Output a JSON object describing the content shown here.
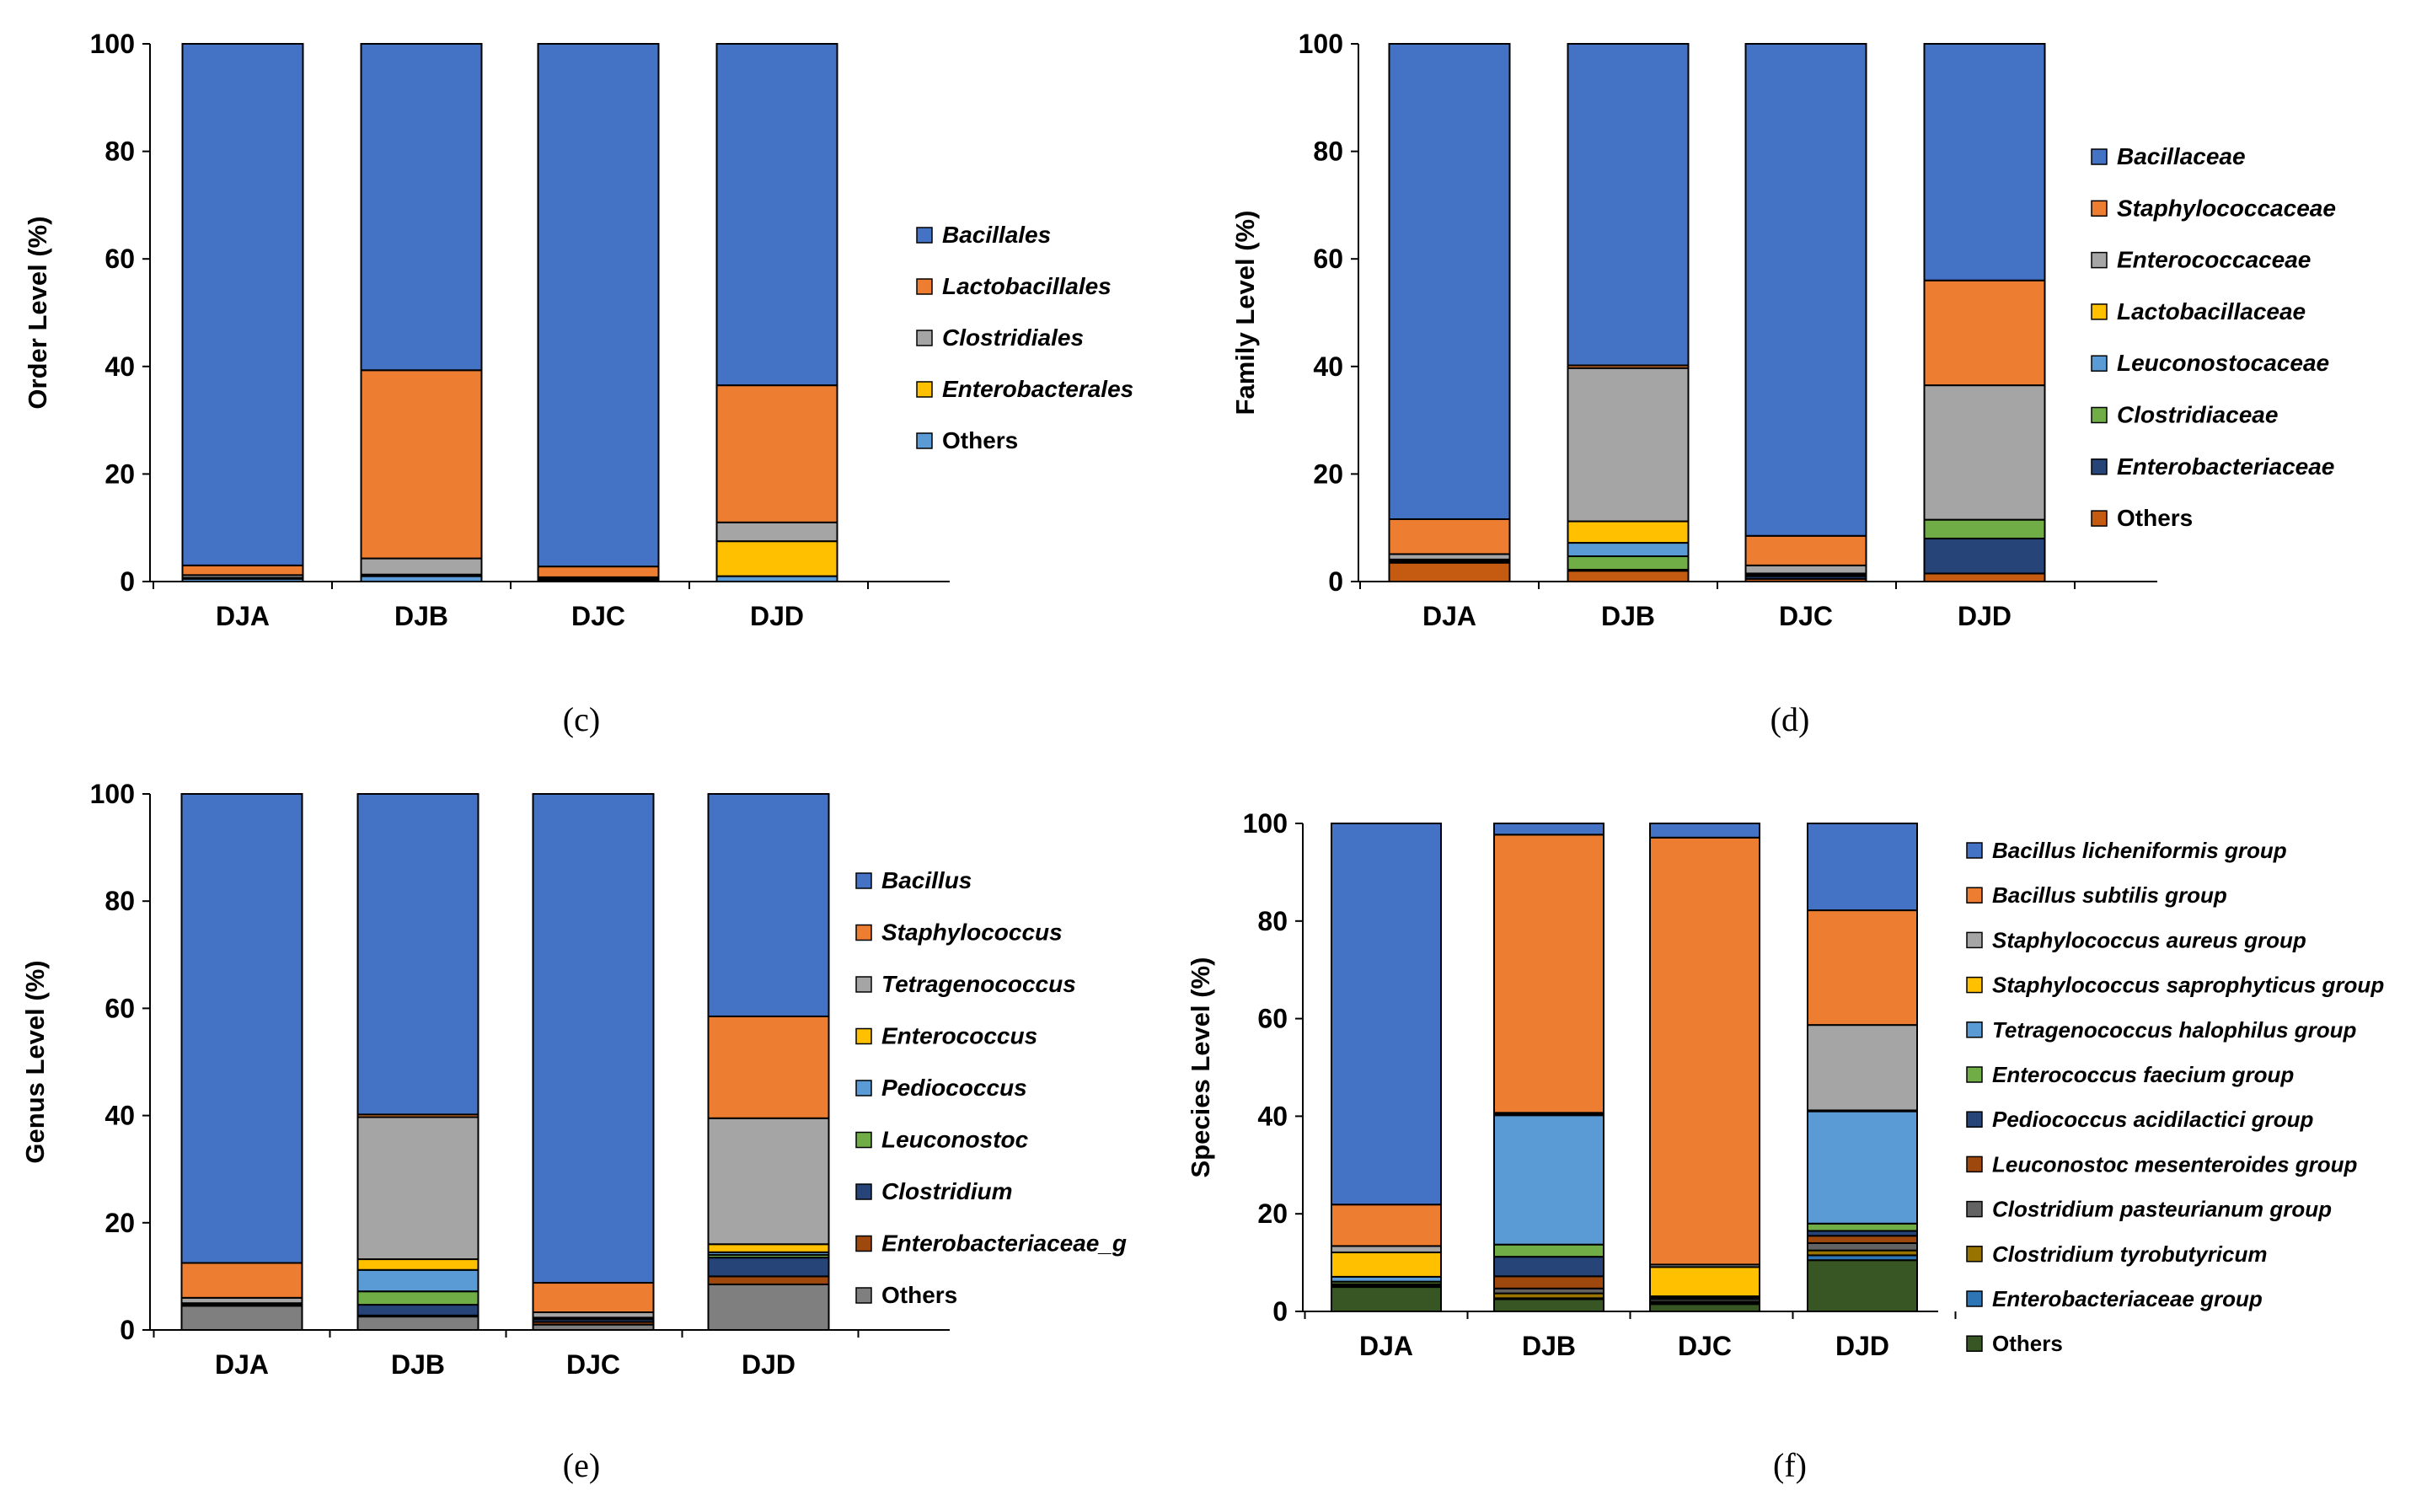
{
  "chart_data": [
    {
      "panel_label": "(c)",
      "type": "bar",
      "stacked": true,
      "title": "",
      "xlabel": "",
      "ylabel": "Order Level (%)",
      "ylim": [
        0,
        100
      ],
      "yticks": [
        "0",
        "20",
        "40",
        "60",
        "80",
        "100"
      ],
      "categories": [
        "DJA",
        "DJB",
        "DJC",
        "DJD"
      ],
      "series": [
        {
          "name": "Others",
          "italic": false,
          "color": "#5B9BD5",
          "values": [
            0.5,
            1.0,
            0.3,
            1.0
          ]
        },
        {
          "name": "Enterobacterales",
          "italic": true,
          "color": "#FFC000",
          "values": [
            0.2,
            0.3,
            0.2,
            6.5
          ]
        },
        {
          "name": "Clostridiales",
          "italic": true,
          "color": "#A5A5A5",
          "values": [
            0.5,
            3.0,
            0.3,
            3.5
          ]
        },
        {
          "name": "Lactobacillales",
          "italic": true,
          "color": "#ED7D31",
          "values": [
            1.8,
            35.0,
            2.0,
            25.5
          ]
        },
        {
          "name": "Bacillales",
          "italic": true,
          "color": "#4472C4",
          "values": [
            97.0,
            60.7,
            97.2,
            63.5
          ]
        }
      ],
      "legend_order": [
        "Bacillales",
        "Lactobacillales",
        "Clostridiales",
        "Enterobacterales",
        "Others"
      ],
      "legend_position": "right"
    },
    {
      "panel_label": "(d)",
      "type": "bar",
      "stacked": true,
      "title": "",
      "xlabel": "",
      "ylabel": "Family Level (%)",
      "ylim": [
        0,
        100
      ],
      "yticks": [
        "0",
        "20",
        "40",
        "60",
        "80",
        "100"
      ],
      "categories": [
        "DJA",
        "DJB",
        "DJC",
        "DJD"
      ],
      "series": [
        {
          "name": "Others",
          "italic": false,
          "color": "#C55A11",
          "values": [
            3.5,
            2.0,
            0.5,
            1.5
          ]
        },
        {
          "name": "Enterobacteriaceae",
          "italic": true,
          "color": "#264478",
          "values": [
            0.2,
            0.2,
            0.5,
            6.5
          ]
        },
        {
          "name": "Clostridiaceae",
          "italic": true,
          "color": "#70AD47",
          "values": [
            0.2,
            2.5,
            0.3,
            3.5
          ]
        },
        {
          "name": "Leuconostocaceae",
          "italic": true,
          "color": "#5B9BD5",
          "values": [
            0.1,
            2.5,
            0.1,
            0.0
          ]
        },
        {
          "name": "Lactobacillaceae",
          "italic": true,
          "color": "#FFC000",
          "values": [
            0.1,
            4.0,
            0.1,
            0.0
          ]
        },
        {
          "name": "Enterococcaceae",
          "italic": true,
          "color": "#A5A5A5",
          "values": [
            1.0,
            28.5,
            1.5,
            25.0
          ]
        },
        {
          "name": "Staphylococcaceae",
          "italic": true,
          "color": "#ED7D31",
          "values": [
            6.5,
            0.5,
            5.5,
            19.5
          ]
        },
        {
          "name": "Bacillaceae",
          "italic": true,
          "color": "#4472C4",
          "values": [
            88.4,
            59.8,
            91.5,
            44.0
          ]
        }
      ],
      "legend_order": [
        "Bacillaceae",
        "Staphylococcaceae",
        "Enterococcaceae",
        "Lactobacillaceae",
        "Leuconostocaceae",
        "Clostridiaceae",
        "Enterobacteriaceae",
        "Others"
      ],
      "legend_position": "right"
    },
    {
      "panel_label": "(e)",
      "type": "bar",
      "stacked": true,
      "title": "",
      "xlabel": "",
      "ylabel": "Genus Level (%)",
      "ylim": [
        0,
        100
      ],
      "yticks": [
        "0",
        "20",
        "40",
        "60",
        "80",
        "100"
      ],
      "categories": [
        "DJA",
        "DJB",
        "DJC",
        "DJD"
      ],
      "series": [
        {
          "name": "Others",
          "italic": false,
          "color": "#7F7F7F",
          "values": [
            4.5,
            2.5,
            1.0,
            8.5
          ]
        },
        {
          "name": "Enterobacteriaceae_g",
          "italic": true,
          "color": "#9E480E",
          "values": [
            0.1,
            0.2,
            0.5,
            1.5
          ]
        },
        {
          "name": "Clostridium",
          "italic": true,
          "color": "#264478",
          "values": [
            0.1,
            2.0,
            0.5,
            3.5
          ]
        },
        {
          "name": "Leuconostoc",
          "italic": true,
          "color": "#70AD47",
          "values": [
            0.1,
            2.5,
            0.1,
            0.5
          ]
        },
        {
          "name": "Pediococcus",
          "italic": true,
          "color": "#5B9BD5",
          "values": [
            0.1,
            4.0,
            0.1,
            0.5
          ]
        },
        {
          "name": "Enterococcus",
          "italic": true,
          "color": "#FFC000",
          "values": [
            0.1,
            2.0,
            0.1,
            1.5
          ]
        },
        {
          "name": "Tetragenococcus",
          "italic": true,
          "color": "#A5A5A5",
          "values": [
            1.0,
            26.5,
            1.0,
            23.5
          ]
        },
        {
          "name": "Staphylococcus",
          "italic": true,
          "color": "#ED7D31",
          "values": [
            6.5,
            0.5,
            5.5,
            19.0
          ]
        },
        {
          "name": "Bacillus",
          "italic": true,
          "color": "#4472C4",
          "values": [
            87.5,
            59.8,
            91.2,
            41.5
          ]
        }
      ],
      "legend_order": [
        "Bacillus",
        "Staphylococcus",
        "Tetragenococcus",
        "Enterococcus",
        "Pediococcus",
        "Leuconostoc",
        "Clostridium",
        "Enterobacteriaceae_g",
        "Others"
      ],
      "legend_position": "right"
    },
    {
      "panel_label": "(f)",
      "type": "bar",
      "stacked": true,
      "title": "",
      "xlabel": "",
      "ylabel": "Species Level (%)",
      "ylim": [
        0,
        100
      ],
      "yticks": [
        "0",
        "20",
        "40",
        "60",
        "80",
        "100"
      ],
      "categories": [
        "DJA",
        "DJB",
        "DJC",
        "DJD"
      ],
      "series": [
        {
          "name": "Others",
          "italic": false,
          "color": "#375623",
          "values": [
            5.0,
            2.5,
            1.5,
            10.5
          ]
        },
        {
          "name": "Enterobacteriaceae group",
          "italic": true,
          "color": "#2E75B6",
          "values": [
            0.2,
            0.2,
            0.2,
            1.0
          ]
        },
        {
          "name": "Clostridium tyrobutyricum",
          "italic": true,
          "color": "#997300",
          "values": [
            0.1,
            1.0,
            0.3,
            1.0
          ]
        },
        {
          "name": "Clostridium pasteurianum group",
          "italic": true,
          "color": "#636363",
          "values": [
            0.1,
            1.0,
            0.5,
            1.5
          ]
        },
        {
          "name": "Leuconostoc mesenteroides group",
          "italic": true,
          "color": "#9E480E",
          "values": [
            0.1,
            2.5,
            0.1,
            1.5
          ]
        },
        {
          "name": "Pediococcus acidilactici group",
          "italic": true,
          "color": "#264478",
          "values": [
            0.1,
            4.0,
            0.1,
            1.0
          ]
        },
        {
          "name": "Enterococcus faecium group",
          "italic": true,
          "color": "#70AD47",
          "values": [
            0.5,
            2.5,
            0.1,
            1.5
          ]
        },
        {
          "name": "Tetragenococcus halophilus group",
          "italic": true,
          "color": "#5B9BD5",
          "values": [
            1.0,
            26.5,
            0.3,
            23.0
          ]
        },
        {
          "name": "Staphylococcus saprophyticus group",
          "italic": true,
          "color": "#FFC000",
          "values": [
            5.0,
            0.2,
            6.0,
            0.2
          ]
        },
        {
          "name": "Staphylococcus aureus group",
          "italic": true,
          "color": "#A5A5A5",
          "values": [
            1.3,
            0.3,
            0.5,
            17.5
          ]
        },
        {
          "name": "Bacillus subtilis group",
          "italic": true,
          "color": "#ED7D31",
          "values": [
            8.5,
            57.0,
            87.5,
            23.5
          ]
        },
        {
          "name": "Bacillus licheniformis group",
          "italic": true,
          "color": "#4472C4",
          "values": [
            78.1,
            2.3,
            2.9,
            17.8
          ]
        }
      ],
      "legend_order": [
        "Bacillus licheniformis group",
        "Bacillus subtilis group",
        "Staphylococcus aureus group",
        "Staphylococcus saprophyticus group",
        "Tetragenococcus halophilus group",
        "Enterococcus faecium group",
        "Pediococcus acidilactici group",
        "Leuconostoc mesenteroides group",
        "Clostridium pasteurianum group",
        "Clostridium tyrobutyricum",
        "Enterobacteriaceae group",
        "Others"
      ],
      "legend_position": "right"
    }
  ]
}
